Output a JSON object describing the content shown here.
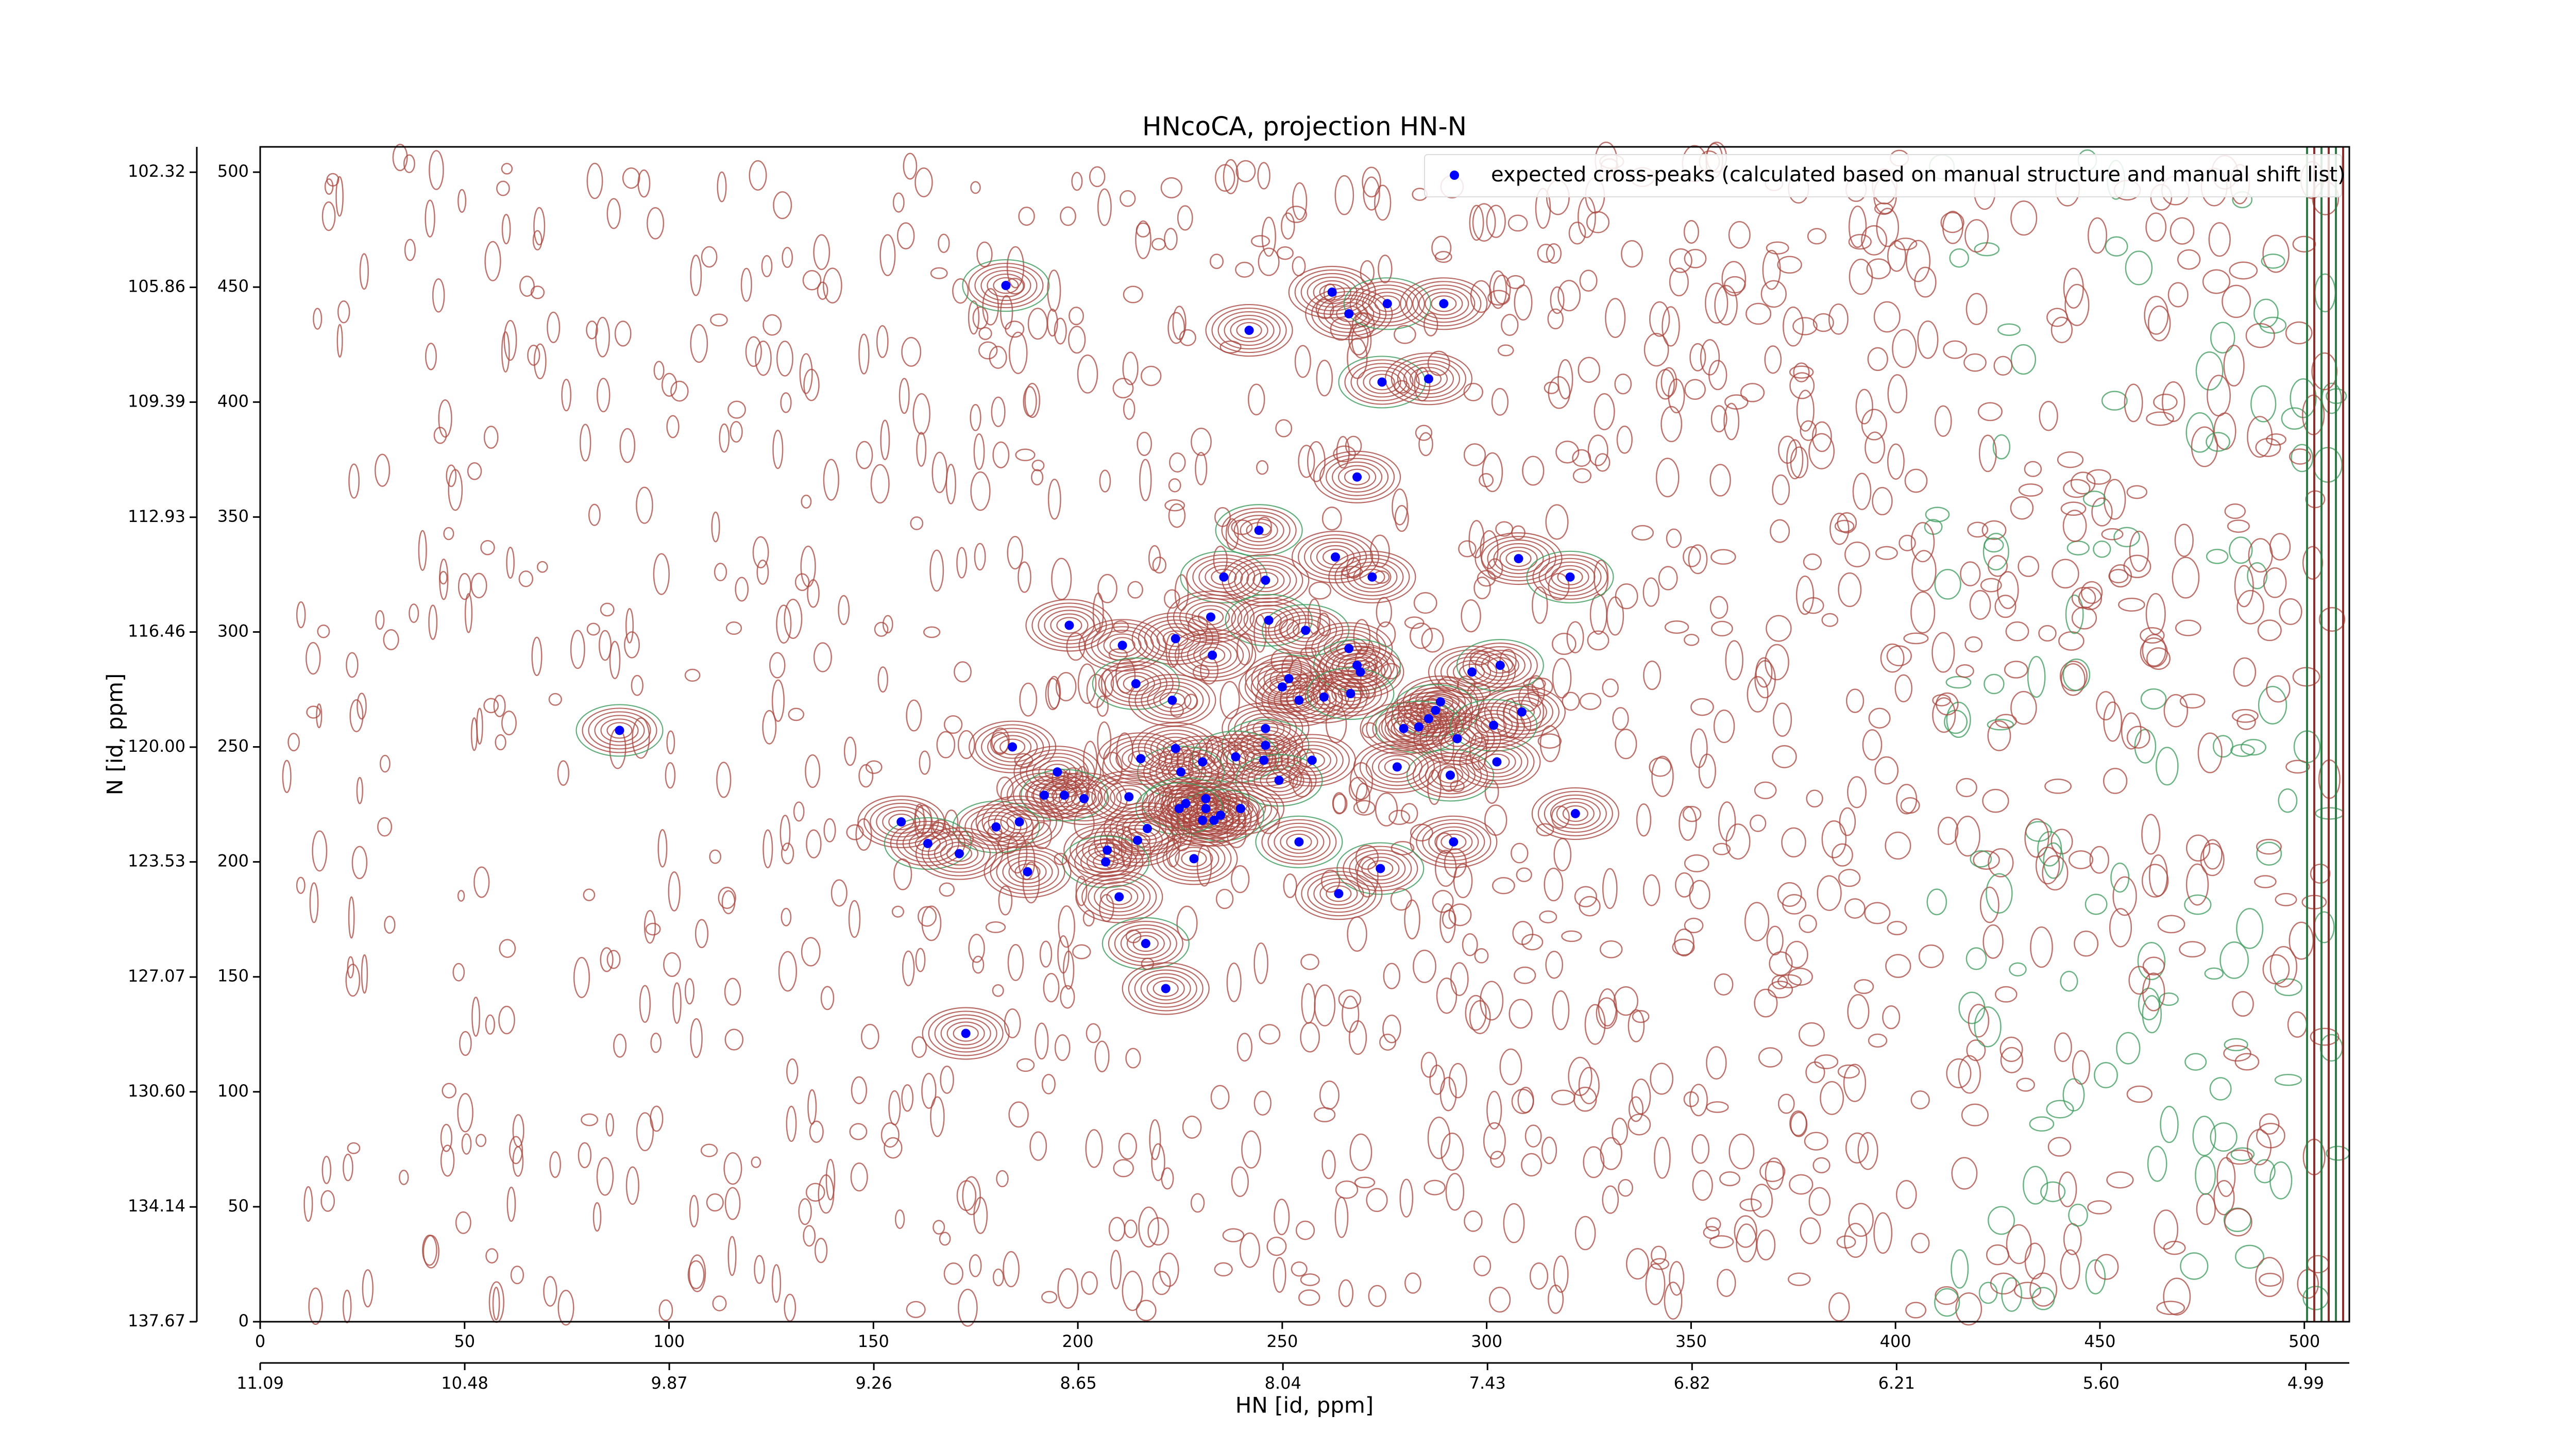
{
  "chart_data": {
    "type": "scatter",
    "title": "HNcoCA, projection HN-N",
    "xlabel": "HN [id, ppm]",
    "ylabel": "N [id, ppm]",
    "xlim": [
      0,
      511
    ],
    "ylim": [
      0,
      511
    ],
    "xticks": [
      0,
      50,
      100,
      150,
      200,
      250,
      300,
      350,
      400,
      450,
      500
    ],
    "yticks": [
      0,
      50,
      100,
      150,
      200,
      250,
      300,
      350,
      400,
      450,
      500
    ],
    "x2lim": [
      11.09,
      4.86
    ],
    "x2ticks": [
      11.09,
      10.48,
      9.87,
      9.26,
      8.65,
      8.04,
      7.43,
      6.82,
      6.21,
      {
        "value": 5.6,
        "label": "5.60"
      },
      4.99
    ],
    "y2lim": [
      137.67,
      101.54
    ],
    "y2ticks": [
      137.67,
      134.14,
      {
        "value": 130.6,
        "label": "130.60"
      },
      127.07,
      123.53,
      {
        "value": 120,
        "label": "120.00"
      },
      116.46,
      112.93,
      109.39,
      105.86,
      102.32
    ],
    "legend": "upper right",
    "series": [
      {
        "name": "expected cross-peaks (calculated based on manual structure and manual shift list)",
        "color": "#0000ff",
        "x": [
          182.4,
          262.2,
          266.3,
          275.7,
          289.5,
          241.9,
          274.4,
          285.8,
          268.3,
          244.3,
          263.0,
          307.8,
          235.7,
          245.9,
          272.0,
          320.4,
          197.9,
          232.5,
          246.7,
          210.9,
          223.9,
          255.7,
          232.9,
          266.3,
          268.3,
          269.1,
          296.4,
          303.3,
          251.6,
          250.0,
          214.2,
          260.2,
          254.1,
          266.7,
          223.1,
          288.7,
          287.5,
          285.8,
          308.6,
          283.4,
          279.7,
          292.8,
          301.7,
          245.9,
          184.0,
          245.9,
          223.9,
          245.5,
          238.6,
          257.3,
          230.5,
          225.2,
          215.4,
          195.0,
          291.1,
          278.1,
          302.5,
          249.2,
          201.5,
          191.8,
          196.7,
          212.5,
          231.3,
          226.4,
          231.3,
          239.8,
          234.9,
          233.3,
          230.5,
          224.8,
          217.0,
          156.8,
          180.0,
          185.7,
          321.7,
          163.3,
          171.0,
          291.9,
          254.1,
          214.6,
          207.2,
          206.8,
          228.4,
          187.7,
          274.0,
          263.8,
          210.1,
          216.6,
          221.5,
          172.6,
          87.9
        ],
        "y": [
          450.7,
          447.8,
          438.4,
          442.8,
          442.8,
          431.2,
          408.7,
          410.1,
          367.4,
          344.2,
          332.6,
          331.9,
          323.9,
          322.5,
          323.9,
          323.9,
          302.9,
          306.5,
          305.1,
          294.2,
          297.1,
          300.7,
          289.9,
          292.8,
          285.5,
          282.6,
          282.6,
          285.5,
          279.7,
          276.1,
          277.5,
          271.7,
          270.3,
          273.2,
          270.3,
          269.6,
          265.9,
          262.3,
          265.2,
          258.7,
          258.0,
          253.6,
          259.4,
          258.0,
          250.0,
          250.7,
          249.3,
          244.2,
          245.7,
          244.2,
          243.5,
          239.1,
          244.9,
          239.1,
          237.7,
          241.3,
          243.5,
          235.5,
          227.5,
          229.0,
          229.0,
          228.3,
          227.5,
          225.4,
          223.2,
          223.2,
          220.3,
          218.1,
          218.1,
          223.2,
          214.5,
          217.4,
          215.2,
          217.4,
          221.0,
          208.0,
          203.6,
          208.7,
          208.7,
          209.4,
          205.1,
          200.0,
          201.4,
          195.7,
          197.1,
          186.2,
          184.8,
          164.5,
          144.9,
          125.4,
          257.2
        ]
      }
    ]
  }
}
